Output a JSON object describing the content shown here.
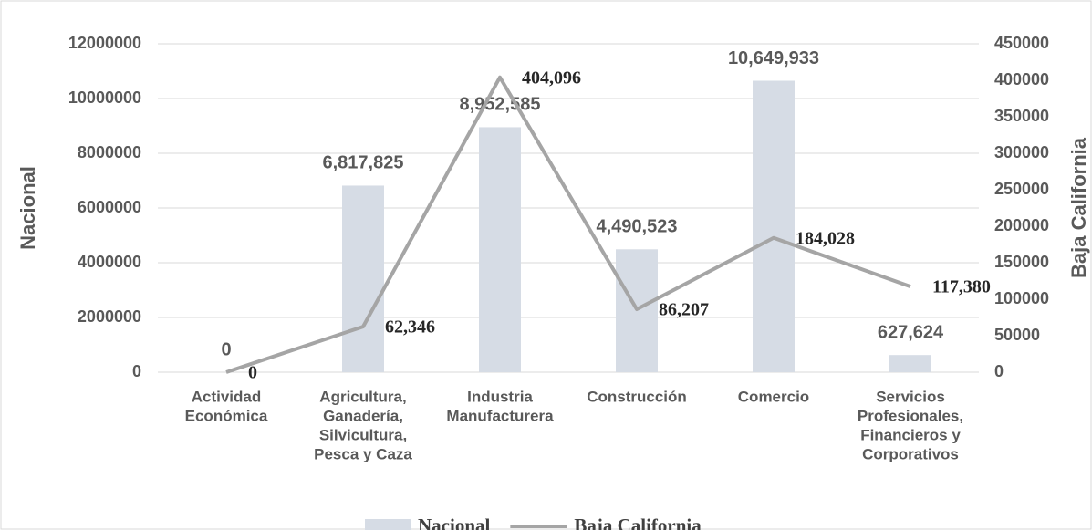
{
  "chart_data": {
    "type": "bar_line",
    "categories": [
      [
        "Actividad",
        "Económica"
      ],
      [
        "Agricultura,",
        "Ganadería,",
        "Silvicultura,",
        "Pesca y Caza"
      ],
      [
        "Industria",
        "Manufacturera"
      ],
      [
        "Construcción"
      ],
      [
        "Comercio"
      ],
      [
        "Servicios",
        "Profesionales,",
        "Financieros y",
        "Corporativos"
      ]
    ],
    "series": [
      {
        "name": "Nacional",
        "type": "bar",
        "color": "#d6dce5",
        "axis": "y",
        "values": [
          0,
          6817825,
          8952585,
          4490523,
          10649933,
          627624
        ],
        "value_labels": [
          "0",
          "6,817,825",
          "8,952,585",
          "4,490,523",
          "10,649,933",
          "627,624"
        ]
      },
      {
        "name": "Baja California",
        "type": "line",
        "color": "#a5a5a5",
        "axis": "y2",
        "values": [
          0,
          62346,
          404096,
          86207,
          184028,
          117380
        ],
        "value_labels": [
          "0",
          "62,346",
          "404,096",
          "86,207",
          "184,028",
          "117,380"
        ]
      }
    ],
    "y_label": "Nacional",
    "y2_label": "Baja California",
    "ylim": [
      0,
      12000000
    ],
    "yticks": [
      0,
      2000000,
      4000000,
      6000000,
      8000000,
      10000000,
      12000000
    ],
    "y2lim": [
      0,
      450000
    ],
    "y2ticks": [
      0,
      50000,
      100000,
      150000,
      200000,
      250000,
      300000,
      350000,
      400000,
      450000
    ],
    "grid": true,
    "legend": "bottom"
  }
}
